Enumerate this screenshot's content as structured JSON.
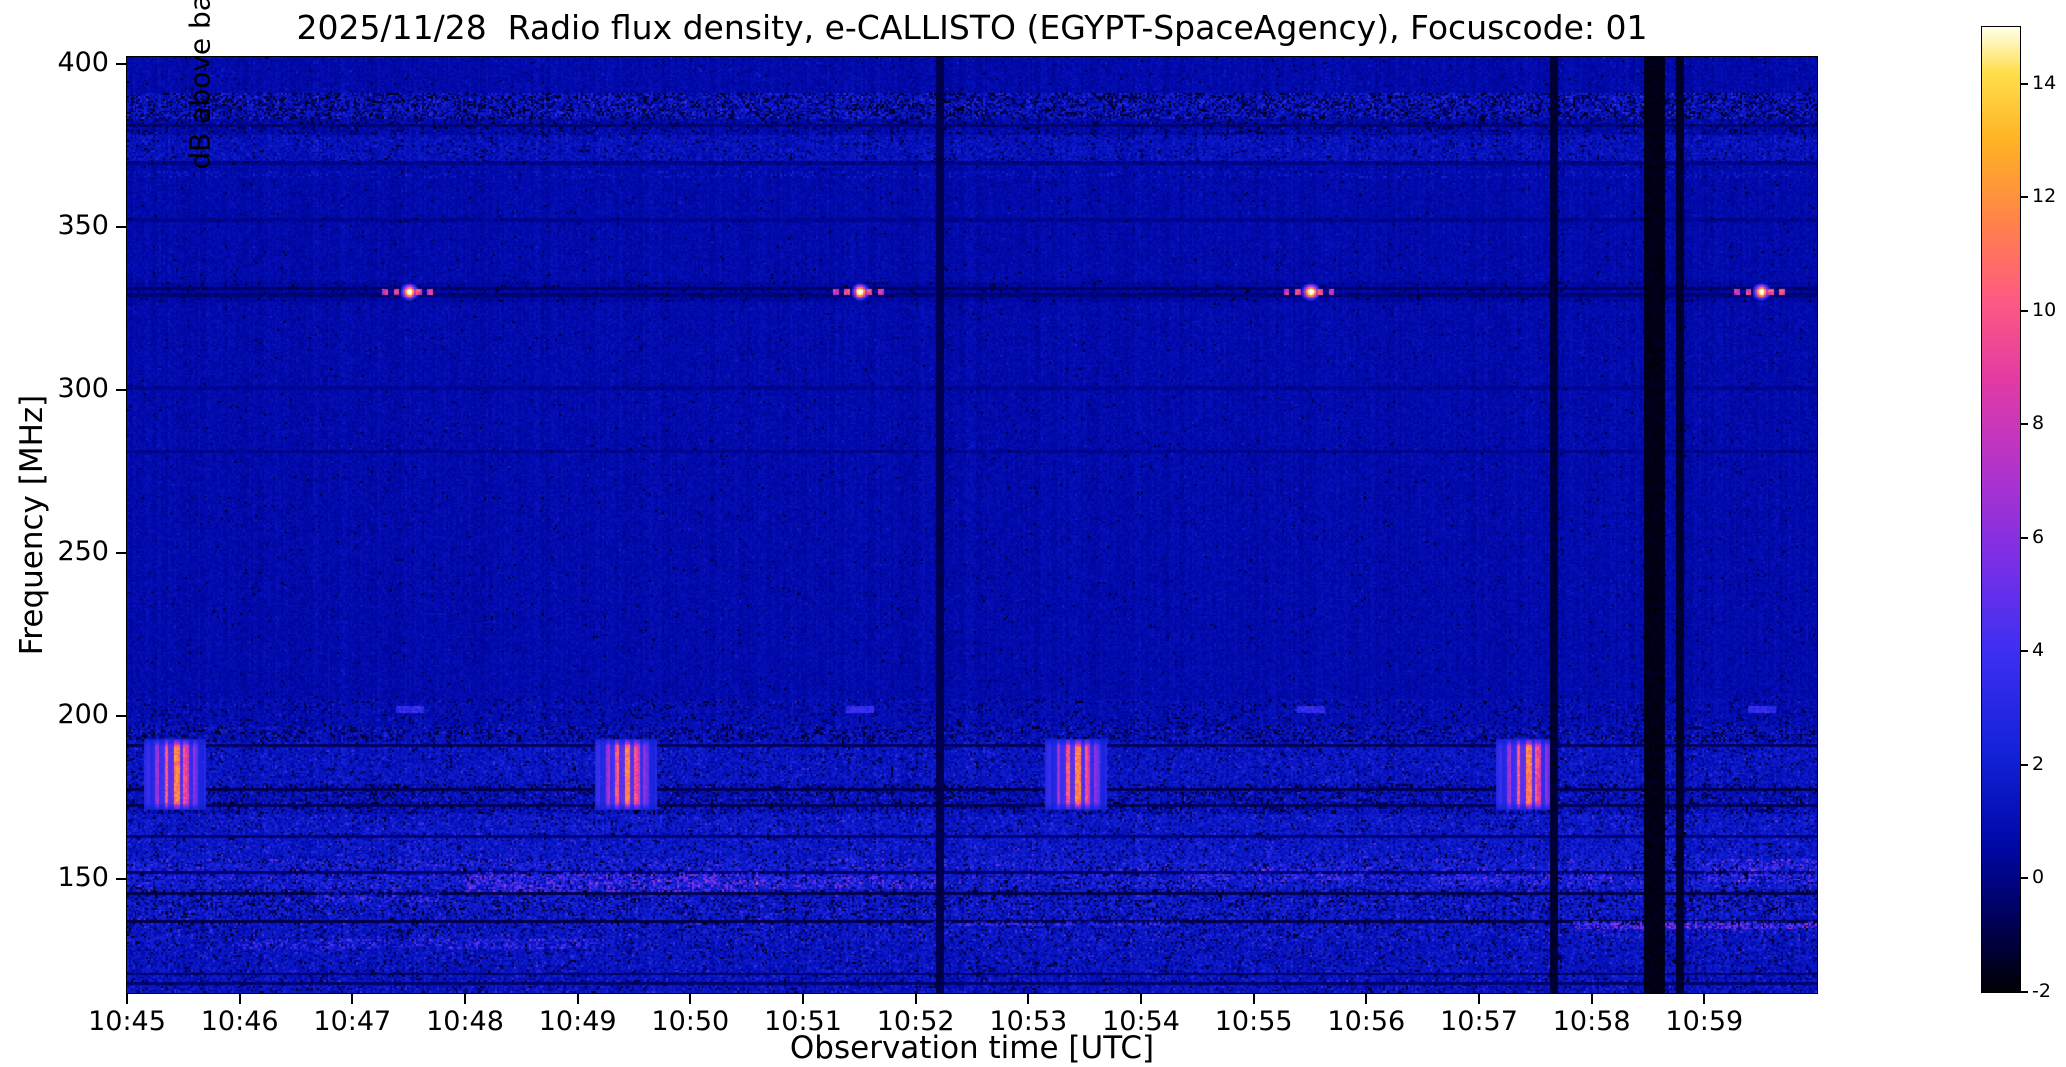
{
  "chart_data": {
    "type": "heatmap",
    "title": "2025/11/28  Radio flux density, e-CALLISTO (EGYPT-SpaceAgency), Focuscode: 01",
    "xlabel": "Observation time [UTC]",
    "ylabel": "Frequency [MHz]",
    "colorbar_label": "dB above background",
    "x_ticks": [
      "10:45",
      "10:46",
      "10:47",
      "10:48",
      "10:49",
      "10:50",
      "10:51",
      "10:52",
      "10:53",
      "10:54",
      "10:55",
      "10:56",
      "10:57",
      "10:58",
      "10:59"
    ],
    "x_range_s": [
      0,
      900
    ],
    "y_ticks_mhz": [
      400,
      350,
      300,
      250,
      200,
      150
    ],
    "freq_range_mhz": [
      115,
      402
    ],
    "value_range_db": [
      -2,
      15
    ],
    "colorbar_ticks_db": [
      -2,
      0,
      2,
      4,
      6,
      8,
      10,
      12,
      14
    ],
    "colormap_stops": [
      {
        "v": -2.0,
        "c": "#000003"
      },
      {
        "v": -0.8,
        "c": "#000055"
      },
      {
        "v": 0.6,
        "c": "#0008a8"
      },
      {
        "v": 2.2,
        "c": "#1322d8"
      },
      {
        "v": 4.0,
        "c": "#3d2ff2"
      },
      {
        "v": 5.6,
        "c": "#7a2fe6"
      },
      {
        "v": 7.2,
        "c": "#b133cc"
      },
      {
        "v": 8.8,
        "c": "#e23ba4"
      },
      {
        "v": 10.2,
        "c": "#ff5a82"
      },
      {
        "v": 11.6,
        "c": "#ff8448"
      },
      {
        "v": 13.0,
        "c": "#ffb224"
      },
      {
        "v": 14.2,
        "c": "#ffdf4c"
      },
      {
        "v": 15.0,
        "c": "#ffffe8"
      }
    ],
    "noise_bands": [
      {
        "f0": 391,
        "f1": 402,
        "base": 0.25,
        "noise": 0.9,
        "p_spike": 0.02,
        "spike": 1.2,
        "p_dark": 0.01
      },
      {
        "f0": 383,
        "f1": 391,
        "base": 0.4,
        "noise": 1.6,
        "p_spike": 0.22,
        "spike": 2.2,
        "p_dark": 0.28
      },
      {
        "f0": 378,
        "f1": 383,
        "base": 0.2,
        "noise": 1.0,
        "p_spike": 0.06,
        "spike": 1.5,
        "p_dark": 0.12
      },
      {
        "f0": 369,
        "f1": 378,
        "base": 0.5,
        "noise": 1.3,
        "p_spike": 0.12,
        "spike": 1.2,
        "p_dark": 0.05
      },
      {
        "f0": 333,
        "f1": 369,
        "base": 0.3,
        "noise": 0.85,
        "p_spike": 0.02,
        "spike": 1.0,
        "p_dark": 0.01
      },
      {
        "f0": 327,
        "f1": 333,
        "base": 0.15,
        "noise": 0.7,
        "p_spike": 0.01,
        "spike": 0.8,
        "p_dark": 0.06
      },
      {
        "f0": 205,
        "f1": 327,
        "base": 0.3,
        "noise": 0.9,
        "p_spike": 0.02,
        "spike": 1.0,
        "p_dark": 0.01
      },
      {
        "f0": 197,
        "f1": 205,
        "base": 0.35,
        "noise": 1.1,
        "p_spike": 0.06,
        "spike": 1.3,
        "p_dark": 0.08
      },
      {
        "f0": 192,
        "f1": 197,
        "base": 0.4,
        "noise": 1.3,
        "p_spike": 0.15,
        "spike": 1.8,
        "p_dark": 0.2
      },
      {
        "f0": 179,
        "f1": 192,
        "base": 0.6,
        "noise": 1.5,
        "p_spike": 0.1,
        "spike": 2.2,
        "p_dark": 0.06
      },
      {
        "f0": 170,
        "f1": 179,
        "base": 0.45,
        "noise": 1.4,
        "p_spike": 0.12,
        "spike": 2.0,
        "p_dark": 0.18
      },
      {
        "f0": 156,
        "f1": 170,
        "base": 0.7,
        "noise": 1.7,
        "p_spike": 0.1,
        "spike": 2.6,
        "p_dark": 0.06
      },
      {
        "f0": 147,
        "f1": 156,
        "base": 0.8,
        "noise": 2.0,
        "p_spike": 0.16,
        "spike": 3.2,
        "p_dark": 0.1
      },
      {
        "f0": 139,
        "f1": 147,
        "base": 0.7,
        "noise": 1.8,
        "p_spike": 0.12,
        "spike": 2.6,
        "p_dark": 0.16
      },
      {
        "f0": 131,
        "f1": 139,
        "base": 0.65,
        "noise": 1.6,
        "p_spike": 0.12,
        "spike": 2.8,
        "p_dark": 0.1
      },
      {
        "f0": 115,
        "f1": 131,
        "base": 0.55,
        "noise": 1.5,
        "p_spike": 0.1,
        "spike": 2.4,
        "p_dark": 0.08
      }
    ],
    "horizontal_interference_lines_mhz": [
      {
        "f": 381.0,
        "db": -0.6
      },
      {
        "f": 369.5,
        "db": -0.4
      },
      {
        "f": 352.0,
        "db": -0.3
      },
      {
        "f": 330.8,
        "db": -0.9
      },
      {
        "f": 329.2,
        "db": -0.7
      },
      {
        "f": 300.5,
        "db": -0.2
      },
      {
        "f": 281.0,
        "db": -0.3
      },
      {
        "f": 190.8,
        "db": -1.0
      },
      {
        "f": 177.3,
        "db": -1.2
      },
      {
        "f": 172.6,
        "db": -1.0
      },
      {
        "f": 163.0,
        "db": -0.6
      },
      {
        "f": 152.2,
        "db": -0.8
      },
      {
        "f": 145.6,
        "db": -1.3
      },
      {
        "f": 137.2,
        "db": -1.4
      },
      {
        "f": 120.8,
        "db": -0.7
      },
      {
        "f": 118.0,
        "db": -0.8
      }
    ],
    "vertical_interference": [
      {
        "t_s": 432,
        "w_s": 3,
        "db": -1.2
      },
      {
        "t_s": 759,
        "w_s": 3,
        "db": -1.6
      },
      {
        "t_s": 813,
        "w_s": 10,
        "db": -2.0
      },
      {
        "t_s": 826,
        "w_s": 3,
        "db": -1.7
      }
    ],
    "enhancements": [
      {
        "t0": 180,
        "t1": 335,
        "f0": 146.0,
        "f1": 152.0,
        "amp": 3.0,
        "p": 0.35
      },
      {
        "t0": 335,
        "t1": 430,
        "f0": 147.0,
        "f1": 151.0,
        "amp": 2.2,
        "p": 0.3
      },
      {
        "t0": 60,
        "t1": 250,
        "f0": 128.5,
        "f1": 131.5,
        "amp": 2.6,
        "p": 0.3
      },
      {
        "t0": 770,
        "t1": 899,
        "f0": 134.5,
        "f1": 137.0,
        "amp": 4.0,
        "p": 0.5
      },
      {
        "t0": 430,
        "t1": 560,
        "f0": 135.5,
        "f1": 137.2,
        "amp": 2.6,
        "p": 0.35
      },
      {
        "t0": 700,
        "t1": 790,
        "f0": 148.0,
        "f1": 152.0,
        "amp": 2.0,
        "p": 0.3
      },
      {
        "t0": 840,
        "t1": 899,
        "f0": 149.0,
        "f1": 156.0,
        "amp": 2.6,
        "p": 0.3
      },
      {
        "t0": 100,
        "t1": 165,
        "f0": 143.0,
        "f1": 146.0,
        "amp": 2.4,
        "p": 0.35
      },
      {
        "t0": 0,
        "t1": 899,
        "f0": 365.0,
        "f1": 367.0,
        "amp": 1.1,
        "p": 0.18
      },
      {
        "t0": 560,
        "t1": 660,
        "f0": 149.0,
        "f1": 153.0,
        "amp": 1.8,
        "p": 0.3
      }
    ],
    "features": {
      "calibration_330": {
        "freq_mhz": 330,
        "times_s": [
          150,
          390,
          630,
          870
        ],
        "peak_db": 15,
        "dash_halfwidth_s": 14
      },
      "echo_202": {
        "freq_mhz": 202,
        "times_s": [
          150,
          390,
          630,
          870
        ],
        "db": 3.5
      },
      "sweep_bursts_180": {
        "freq_lo_mhz": 171,
        "freq_hi_mhz": 193,
        "times_s": [
          25,
          265,
          505,
          745
        ],
        "peak_db": 13,
        "halfwidth_s": 16
      }
    }
  }
}
